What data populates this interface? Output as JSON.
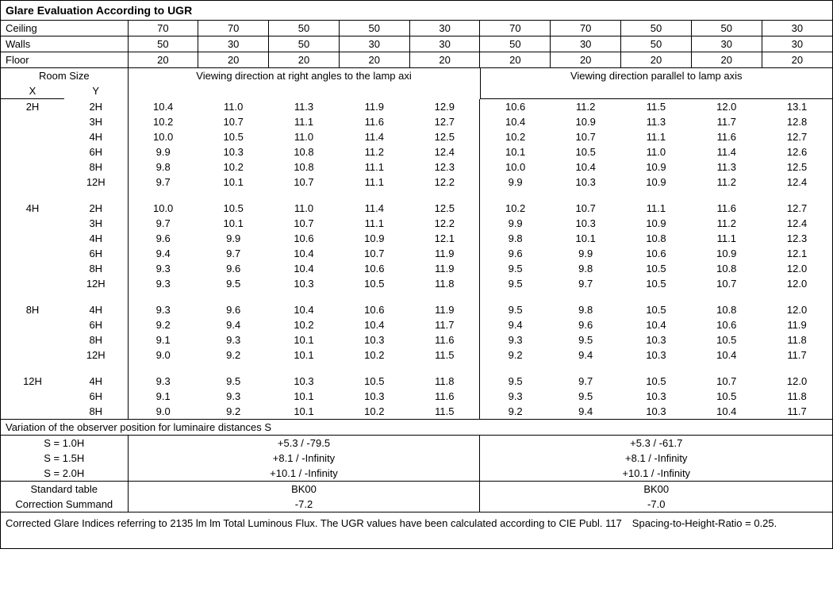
{
  "title": "Glare Evaluation According to UGR",
  "header_rows": [
    {
      "label": "Ceiling",
      "vals": [
        "70",
        "70",
        "50",
        "50",
        "30",
        "70",
        "70",
        "50",
        "50",
        "30"
      ]
    },
    {
      "label": "Walls",
      "vals": [
        "50",
        "30",
        "50",
        "30",
        "30",
        "50",
        "30",
        "50",
        "30",
        "30"
      ]
    },
    {
      "label": "Floor",
      "vals": [
        "20",
        "20",
        "20",
        "20",
        "20",
        "20",
        "20",
        "20",
        "20",
        "20"
      ]
    }
  ],
  "room_size_label": "Room Size",
  "room_x": "X",
  "room_y": "Y",
  "view_left": "Viewing direction at right angles to the lamp axi",
  "view_right": "Viewing direction parallel to lamp axis",
  "groups": [
    {
      "x": "2H",
      "rows": [
        {
          "y": "2H",
          "v": [
            "10.4",
            "11.0",
            "11.3",
            "11.9",
            "12.9",
            "10.6",
            "11.2",
            "11.5",
            "12.0",
            "13.1"
          ]
        },
        {
          "y": "3H",
          "v": [
            "10.2",
            "10.7",
            "11.1",
            "11.6",
            "12.7",
            "10.4",
            "10.9",
            "11.3",
            "11.7",
            "12.8"
          ]
        },
        {
          "y": "4H",
          "v": [
            "10.0",
            "10.5",
            "11.0",
            "11.4",
            "12.5",
            "10.2",
            "10.7",
            "11.1",
            "11.6",
            "12.7"
          ]
        },
        {
          "y": "6H",
          "v": [
            "9.9",
            "10.3",
            "10.8",
            "11.2",
            "12.4",
            "10.1",
            "10.5",
            "11.0",
            "11.4",
            "12.6"
          ]
        },
        {
          "y": "8H",
          "v": [
            "9.8",
            "10.2",
            "10.8",
            "11.1",
            "12.3",
            "10.0",
            "10.4",
            "10.9",
            "11.3",
            "12.5"
          ]
        },
        {
          "y": "12H",
          "v": [
            "9.7",
            "10.1",
            "10.7",
            "11.1",
            "12.2",
            "9.9",
            "10.3",
            "10.9",
            "11.2",
            "12.4"
          ]
        }
      ]
    },
    {
      "x": "4H",
      "rows": [
        {
          "y": "2H",
          "v": [
            "10.0",
            "10.5",
            "11.0",
            "11.4",
            "12.5",
            "10.2",
            "10.7",
            "11.1",
            "11.6",
            "12.7"
          ]
        },
        {
          "y": "3H",
          "v": [
            "9.7",
            "10.1",
            "10.7",
            "11.1",
            "12.2",
            "9.9",
            "10.3",
            "10.9",
            "11.2",
            "12.4"
          ]
        },
        {
          "y": "4H",
          "v": [
            "9.6",
            "9.9",
            "10.6",
            "10.9",
            "12.1",
            "9.8",
            "10.1",
            "10.8",
            "11.1",
            "12.3"
          ]
        },
        {
          "y": "6H",
          "v": [
            "9.4",
            "9.7",
            "10.4",
            "10.7",
            "11.9",
            "9.6",
            "9.9",
            "10.6",
            "10.9",
            "12.1"
          ]
        },
        {
          "y": "8H",
          "v": [
            "9.3",
            "9.6",
            "10.4",
            "10.6",
            "11.9",
            "9.5",
            "9.8",
            "10.5",
            "10.8",
            "12.0"
          ]
        },
        {
          "y": "12H",
          "v": [
            "9.3",
            "9.5",
            "10.3",
            "10.5",
            "11.8",
            "9.5",
            "9.7",
            "10.5",
            "10.7",
            "12.0"
          ]
        }
      ]
    },
    {
      "x": "8H",
      "rows": [
        {
          "y": "4H",
          "v": [
            "9.3",
            "9.6",
            "10.4",
            "10.6",
            "11.9",
            "9.5",
            "9.8",
            "10.5",
            "10.8",
            "12.0"
          ]
        },
        {
          "y": "6H",
          "v": [
            "9.2",
            "9.4",
            "10.2",
            "10.4",
            "11.7",
            "9.4",
            "9.6",
            "10.4",
            "10.6",
            "11.9"
          ]
        },
        {
          "y": "8H",
          "v": [
            "9.1",
            "9.3",
            "10.1",
            "10.3",
            "11.6",
            "9.3",
            "9.5",
            "10.3",
            "10.5",
            "11.8"
          ]
        },
        {
          "y": "12H",
          "v": [
            "9.0",
            "9.2",
            "10.1",
            "10.2",
            "11.5",
            "9.2",
            "9.4",
            "10.3",
            "10.4",
            "11.7"
          ]
        }
      ]
    },
    {
      "x": "12H",
      "rows": [
        {
          "y": "4H",
          "v": [
            "9.3",
            "9.5",
            "10.3",
            "10.5",
            "11.8",
            "9.5",
            "9.7",
            "10.5",
            "10.7",
            "12.0"
          ]
        },
        {
          "y": "6H",
          "v": [
            "9.1",
            "9.3",
            "10.1",
            "10.3",
            "11.6",
            "9.3",
            "9.5",
            "10.3",
            "10.5",
            "11.8"
          ]
        },
        {
          "y": "8H",
          "v": [
            "9.0",
            "9.2",
            "10.1",
            "10.2",
            "11.5",
            "9.2",
            "9.4",
            "10.3",
            "10.4",
            "11.7"
          ]
        }
      ]
    }
  ],
  "variation_title": "Variation of the observer position for luminaire distances S",
  "variation_rows": [
    {
      "s": "S = 1.0H",
      "left": "+5.3 / -79.5",
      "right": "+5.3 / -61.7"
    },
    {
      "s": "S = 1.5H",
      "left": "+8.1 / -Infinity",
      "right": "+8.1 / -Infinity"
    },
    {
      "s": "S = 2.0H",
      "left": "+10.1 / -Infinity",
      "right": "+10.1 / -Infinity"
    }
  ],
  "std_table_label": "Standard table",
  "std_table_left": "BK00",
  "std_table_right": "BK00",
  "corr_label": "Correction Summand",
  "corr_left": "-7.2",
  "corr_right": "-7.0",
  "footer": "Corrected Glare Indices referring to 2135 lm lm Total Luminous Flux. The UGR values have been calculated according to CIE Publ. 117 Spacing-to-Height-Ratio = 0.25."
}
